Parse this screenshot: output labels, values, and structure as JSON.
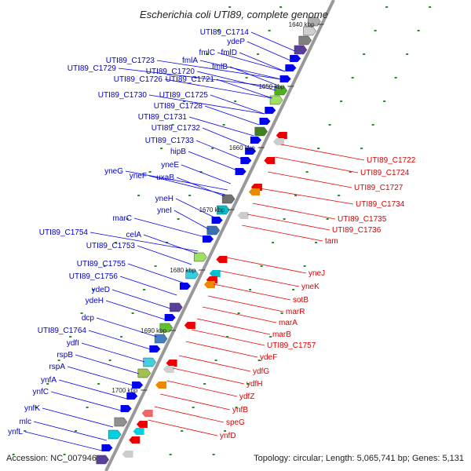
{
  "title": "Escherichia coli UTI89, complete genome",
  "footer": {
    "accession": "Accession: NC_007946",
    "summary": "Topology: circular; Length: 5,065,741 bp; Genes: 5,131"
  },
  "kbp_labels": [
    "1640 kbp",
    "1650 kbp",
    "1660 kbp",
    "1670 kbp",
    "1680 kbp",
    "1690 kbp",
    "1700 kbp"
  ],
  "left_labels": [
    "UTI89_C1714",
    "ydeP",
    "fmlC",
    "fmlD",
    "UTI89_C1723",
    "fmlA",
    "fmlB",
    "UTI89_C1729",
    "UTI89_C1720",
    "UTI89_C1726",
    "UTI89_C1721",
    "UTI89_C1730",
    "UTI89_C1725",
    "UTI89_C1728",
    "UTI89_C1731",
    "UTI89_C1732",
    "UTI89_C1733",
    "hipB",
    "yneE",
    "yneG",
    "yneF",
    "uxaB",
    "yneH",
    "yneI",
    "marC",
    "UTI89_C1754",
    "celA",
    "UTI89_C1753",
    "UTI89_C1755",
    "UTI89_C1756",
    "ydeD",
    "ydeH",
    "dcp",
    "UTI89_C1764",
    "ydfI",
    "rspB",
    "rspA",
    "ynfA",
    "ynfC",
    "ynfK",
    "mlc",
    "ynfL"
  ],
  "right_labels": [
    "UTI89_C1722",
    "UTI89_C1724",
    "UTI89_C1727",
    "UTI89_C1734",
    "UTI89_C1735",
    "UTI89_C1736",
    "tam",
    "yneJ",
    "yneK",
    "sotB",
    "marR",
    "marA",
    "marB",
    "UTI89_C1757",
    "ydeF",
    "ydfG",
    "ydfH",
    "ydfZ",
    "ynfB",
    "speG",
    "ynfD"
  ],
  "colors": {
    "forward_gene": "#0000ee",
    "reverse_gene": "#ee0000",
    "backbone": "#888888",
    "tick": "#2a8a2a"
  }
}
